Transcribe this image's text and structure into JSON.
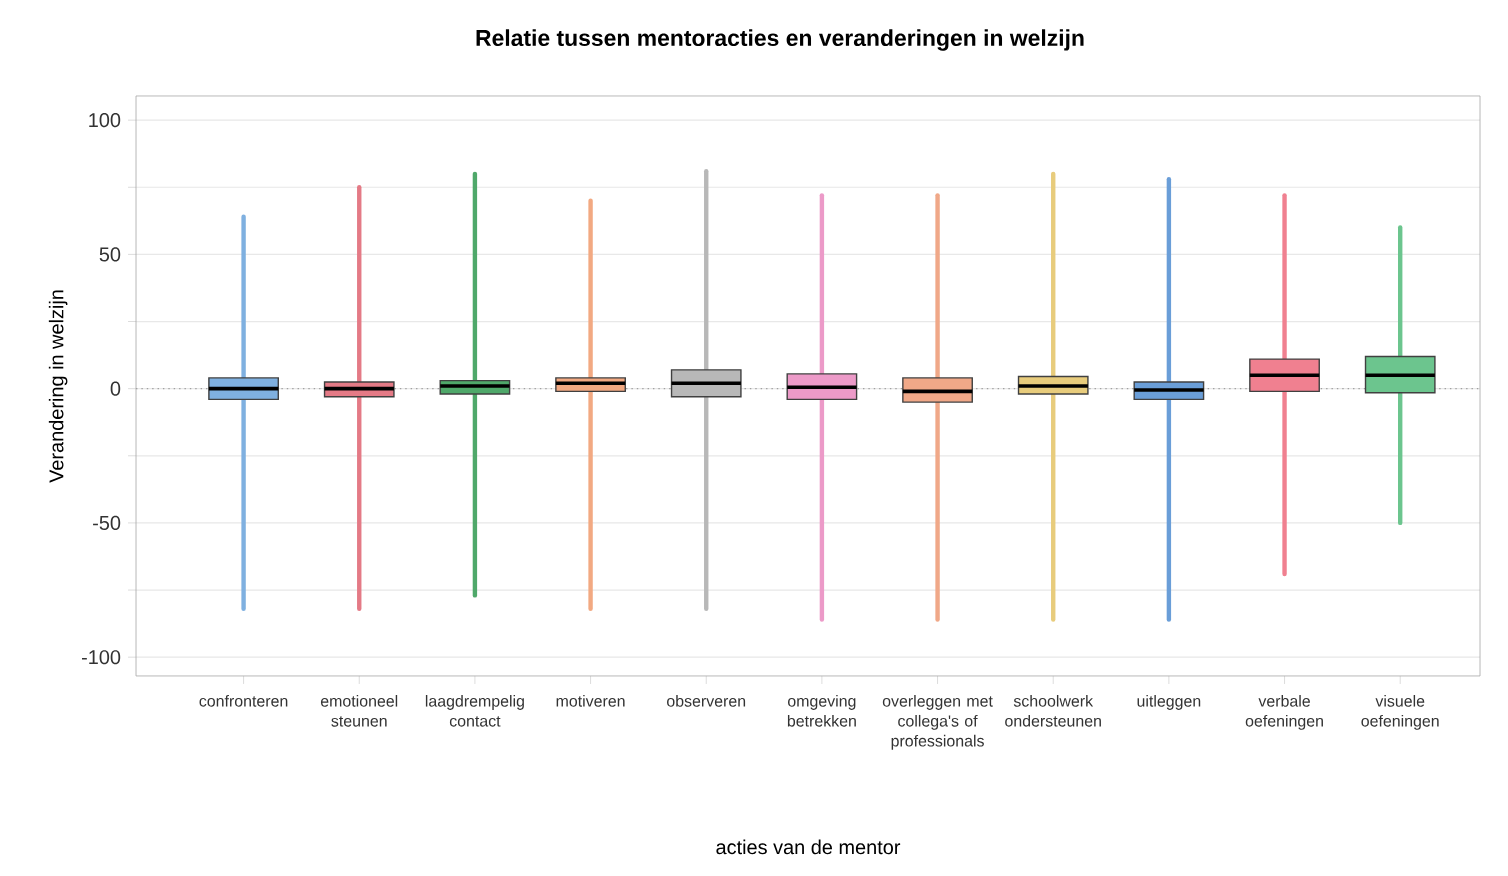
{
  "chart_data": {
    "type": "box",
    "title": "Relatie tussen mentoracties en veranderingen in welzijn",
    "xlabel": "acties van de mentor",
    "ylabel": "Verandering in welzijn",
    "categories": [
      "confronteren",
      "emotioneel steunen",
      "laagdrempelig contact",
      "motiveren",
      "observeren",
      "omgeving betrekken",
      "overleggen met collega's of professionals",
      "schoolwerk ondersteunen",
      "uitleggen",
      "verbale oefeningen",
      "visuele oefeningen"
    ],
    "boxes": [
      {
        "low": -82,
        "q1": -4,
        "median": 0,
        "q3": 4,
        "high": 64
      },
      {
        "low": -82,
        "q1": -3,
        "median": 0,
        "q3": 2.5,
        "high": 75
      },
      {
        "low": -77,
        "q1": -2,
        "median": 1,
        "q3": 3,
        "high": 80
      },
      {
        "low": -82,
        "q1": -1,
        "median": 2,
        "q3": 4,
        "high": 70
      },
      {
        "low": -82,
        "q1": -3,
        "median": 2,
        "q3": 7,
        "high": 81
      },
      {
        "low": -86,
        "q1": -4,
        "median": 0.5,
        "q3": 5.5,
        "high": 72
      },
      {
        "low": -86,
        "q1": -5,
        "median": -1,
        "q3": 4,
        "high": 72
      },
      {
        "low": -86,
        "q1": -2,
        "median": 1,
        "q3": 4.5,
        "high": 80
      },
      {
        "low": -86,
        "q1": -4,
        "median": -0.5,
        "q3": 2.5,
        "high": 78
      },
      {
        "low": -69,
        "q1": -1,
        "median": 5,
        "q3": 11,
        "high": 72
      },
      {
        "low": -50,
        "q1": -1.5,
        "median": 5,
        "q3": 12,
        "high": 60
      }
    ],
    "colors": [
      "#7fb0e0",
      "#e47a86",
      "#4fa86a",
      "#f2a982",
      "#b8b8b8",
      "#ec9ac8",
      "#f0a888",
      "#e8cc7c",
      "#6a9ed8",
      "#f08090",
      "#6cc58e"
    ],
    "ylim": [
      -107,
      109
    ],
    "yticks": [
      -100,
      {
        "value": -75,
        "label": null
      },
      -50,
      {
        "value": -25,
        "label": null
      },
      0,
      {
        "value": 25,
        "label": null
      },
      50,
      {
        "value": 75,
        "label": null
      },
      100
    ],
    "grid": "y",
    "ref_lines": [
      {
        "axis": "y",
        "value": 0,
        "line_style": "dotted",
        "color": "#a0a0a0"
      }
    ]
  }
}
